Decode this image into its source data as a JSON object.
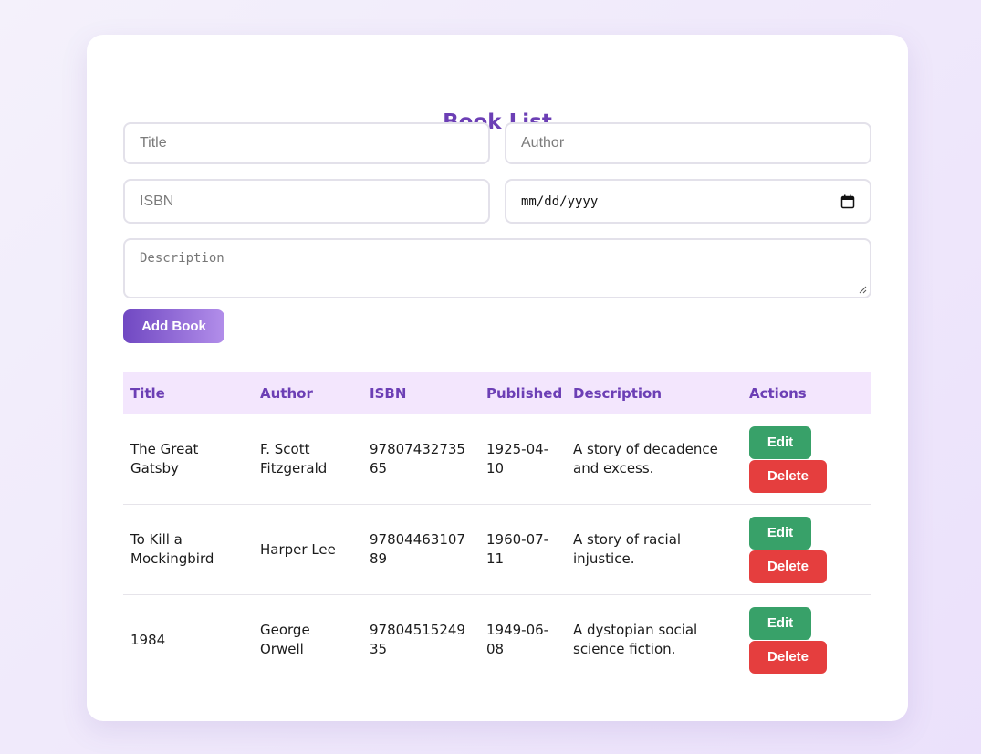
{
  "page": {
    "title": "Book List"
  },
  "form": {
    "title_placeholder": "Title",
    "author_placeholder": "Author",
    "isbn_placeholder": "ISBN",
    "date_placeholder": "mm/dd/yyyy",
    "description_placeholder": "Description",
    "add_button_label": "Add Book"
  },
  "table": {
    "headers": [
      "Title",
      "Author",
      "ISBN",
      "Published",
      "Description",
      "Actions"
    ],
    "rows": [
      {
        "title": "The Great Gatsby",
        "author": "F. Scott Fitzgerald",
        "isbn": "9780743273565",
        "published": "1925-04-10",
        "description": "A story of decadence and excess."
      },
      {
        "title": "To Kill a Mockingbird",
        "author": "Harper Lee",
        "isbn": "9780446310789",
        "published": "1960-07-11",
        "description": "A story of racial injustice."
      },
      {
        "title": "1984",
        "author": "George Orwell",
        "isbn": "9780451524935",
        "published": "1949-06-08",
        "description": "A dystopian social science fiction."
      }
    ],
    "edit_label": "Edit",
    "delete_label": "Delete"
  },
  "colors": {
    "accent": "#6c3fb5",
    "header_bg": "#f3e6fd",
    "edit": "#38a169",
    "delete": "#e53e3e"
  },
  "icons": {
    "date": "calendar-icon",
    "textarea": "resize-handle-icon"
  }
}
